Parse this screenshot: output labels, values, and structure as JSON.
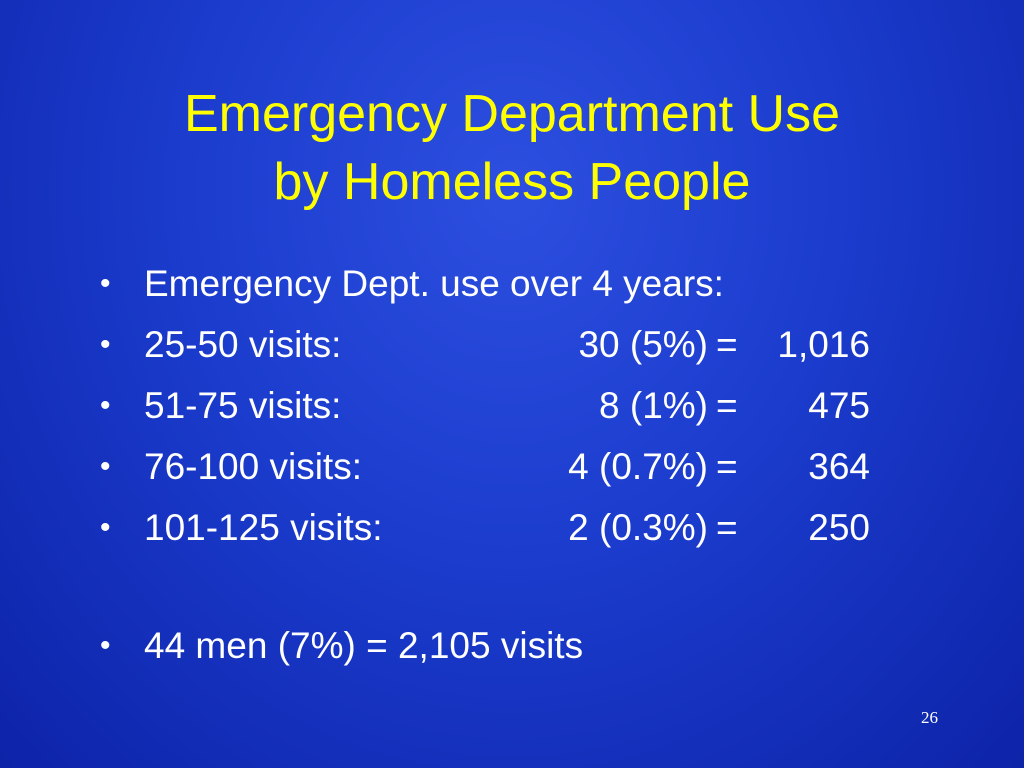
{
  "slide": {
    "title_line1": "Emergency Department Use",
    "title_line2": "by Homeless People",
    "bullet_char": "•",
    "intro": "Emergency Dept. use over 4 years:",
    "rows": [
      {
        "range": "25-50 visits:",
        "count": "30 (5%)",
        "eq": "=",
        "visits": "1,016"
      },
      {
        "range": "51-75 visits:",
        "count": "8 (1%)",
        "eq": "=",
        "visits": "475"
      },
      {
        "range": "76-100 visits:",
        "count": "4 (0.7%)",
        "eq": "=",
        "visits": "364"
      },
      {
        "range": "101-125 visits:",
        "count": "2 (0.3%)",
        "eq": "=",
        "visits": "250"
      }
    ],
    "summary": "44 men (7%) = 2,105 visits",
    "page_number": "26"
  },
  "colors": {
    "background": "#1b3ccd",
    "title": "#ffff00",
    "body_text": "#ffffff"
  }
}
